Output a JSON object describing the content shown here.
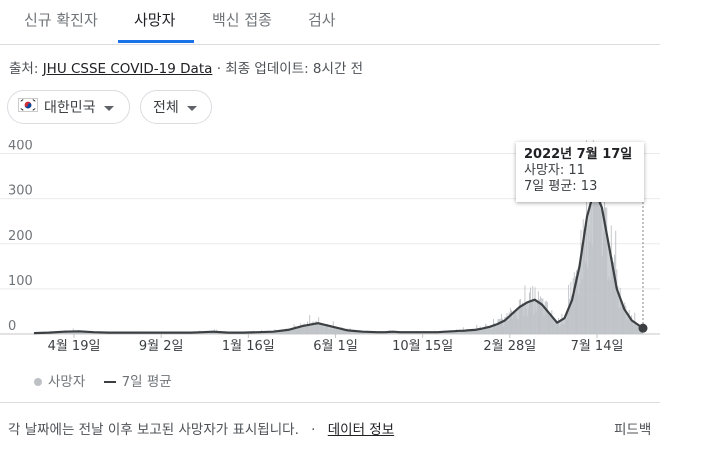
{
  "tabs": [
    {
      "label": "신규 확진자",
      "active": false
    },
    {
      "label": "사망자",
      "active": true
    },
    {
      "label": "백신 접종",
      "active": false
    },
    {
      "label": "검사",
      "active": false
    }
  ],
  "source": {
    "prefix": "출처:",
    "link": "JHU CSSE COVID-19 Data",
    "separator": "·",
    "update": "최종 업데이트: 8시간 전"
  },
  "filters": {
    "country": "대한민국",
    "range": "전체"
  },
  "tooltip": {
    "date": "2022년 7월 17일",
    "deaths": "사망자: 11",
    "avg": "7일 평균: 13"
  },
  "legend": {
    "deaths": "사망자",
    "avg": "7일 평균"
  },
  "footer": {
    "note": "각 날짜에는 전날 이후 보고된 사망자가 표시됩니다.",
    "separator": "·",
    "link": "데이터 정보",
    "feedback": "피드백"
  },
  "colors": {
    "accent": "#1a73e8",
    "bars": "#bdc1c6",
    "line": "#3c4043"
  },
  "chart_data": {
    "type": "area",
    "x_ticks": [
      "4월 19일",
      "9월 2일",
      "1월 16일",
      "6월 1일",
      "10월 15일",
      "2월 28일",
      "7월 14일"
    ],
    "y_ticks": [
      0,
      100,
      200,
      300,
      400
    ],
    "ylim": [
      0,
      430
    ],
    "grid": true,
    "legend_position": "bottom-left",
    "series": [
      {
        "name": "7일 평균",
        "x": [
          0,
          20,
          40,
          60,
          80,
          100,
          120,
          140,
          160,
          180,
          200,
          210,
          225,
          240,
          260,
          280,
          300,
          320,
          340,
          360,
          380,
          400,
          420,
          440,
          460,
          470,
          480,
          490,
          500,
          510,
          520,
          530,
          540,
          550,
          560,
          570,
          575,
          580,
          590,
          600,
          610,
          620,
          630,
          640,
          650,
          660,
          670,
          680,
          690,
          700,
          710,
          720,
          730,
          740,
          750,
          760,
          770,
          780,
          790,
          800,
          815
        ],
        "values": [
          2,
          3,
          5,
          6,
          4,
          3,
          3,
          3,
          3,
          3,
          3,
          3,
          4,
          5,
          3,
          3,
          4,
          5,
          9,
          18,
          24,
          16,
          8,
          5,
          4,
          4,
          5,
          4,
          4,
          4,
          4,
          4,
          4,
          5,
          6,
          7,
          7,
          8,
          9,
          12,
          16,
          22,
          30,
          45,
          60,
          70,
          76,
          65,
          45,
          25,
          35,
          75,
          150,
          260,
          320,
          280,
          190,
          100,
          55,
          30,
          13
        ]
      }
    ]
  }
}
